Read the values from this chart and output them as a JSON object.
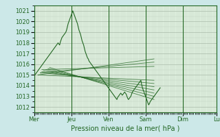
{
  "bg_color": "#cce8e8",
  "plot_bg_color": "#ddeedd",
  "grid_color": "#aabbaa",
  "line_color": "#226622",
  "xlabel": "Pression niveau de la mer( hPa )",
  "ylim": [
    1011.5,
    1021.5
  ],
  "yticks": [
    1012,
    1013,
    1014,
    1015,
    1016,
    1017,
    1018,
    1019,
    1020,
    1021
  ],
  "day_labels": [
    "Mer",
    "Jeu",
    "Ven",
    "Sam",
    "Dim",
    "Lu"
  ],
  "day_positions": [
    0,
    48,
    96,
    144,
    192,
    236
  ],
  "figsize": [
    3.2,
    2.0
  ],
  "dpi": 100,
  "main_curve": [
    1014.7,
    1015.0,
    1015.1,
    1015.2,
    1015.3,
    1015.4,
    1015.5,
    1015.6,
    1015.7,
    1015.8,
    1015.9,
    1016.0,
    1016.1,
    1016.2,
    1016.3,
    1016.4,
    1016.5,
    1016.6,
    1016.7,
    1016.8,
    1016.9,
    1017.0,
    1017.1,
    1017.2,
    1017.3,
    1017.4,
    1017.5,
    1017.6,
    1017.7,
    1017.8,
    1017.9,
    1018.0,
    1017.9,
    1017.8,
    1018.1,
    1018.3,
    1018.5,
    1018.6,
    1018.7,
    1018.8,
    1018.9,
    1019.0,
    1019.2,
    1019.5,
    1019.8,
    1020.0,
    1020.2,
    1020.4,
    1020.6,
    1020.8,
    1021.0,
    1020.8,
    1020.6,
    1020.4,
    1020.2,
    1020.0,
    1019.8,
    1019.5,
    1019.2,
    1019.0,
    1018.8,
    1018.5,
    1018.2,
    1018.0,
    1017.8,
    1017.5,
    1017.2,
    1017.0,
    1016.8,
    1016.6,
    1016.5,
    1016.3,
    1016.2,
    1016.1,
    1016.0,
    1015.9,
    1015.8,
    1015.7,
    1015.6,
    1015.5,
    1015.4,
    1015.3,
    1015.2,
    1015.1,
    1015.0,
    1014.9,
    1014.8,
    1014.7,
    1014.6,
    1014.5,
    1014.4,
    1014.3,
    1014.2,
    1014.1,
    1014.0,
    1013.9,
    1013.8,
    1013.7,
    1013.6,
    1013.5,
    1013.4,
    1013.3,
    1013.2,
    1013.1,
    1013.0,
    1012.9,
    1012.8,
    1012.7,
    1012.9,
    1013.0,
    1013.1,
    1013.2,
    1013.3,
    1013.2,
    1013.1,
    1013.2,
    1013.3,
    1013.4,
    1013.3,
    1013.2,
    1013.0,
    1012.8,
    1012.7,
    1012.8,
    1012.9,
    1013.0,
    1013.2,
    1013.4,
    1013.5,
    1013.6,
    1013.7,
    1013.8,
    1013.9,
    1014.0,
    1014.1,
    1014.2,
    1014.3,
    1014.4,
    1014.5,
    1014.1,
    1013.8,
    1013.6,
    1013.4,
    1013.2,
    1013.0,
    1012.8,
    1012.6,
    1012.4,
    1012.2,
    1012.3,
    1012.5,
    1012.6,
    1012.7,
    1012.8,
    1012.9,
    1013.0,
    1013.1,
    1013.2,
    1013.3,
    1013.4,
    1013.5,
    1013.6,
    1013.7,
    1013.8
  ]
}
